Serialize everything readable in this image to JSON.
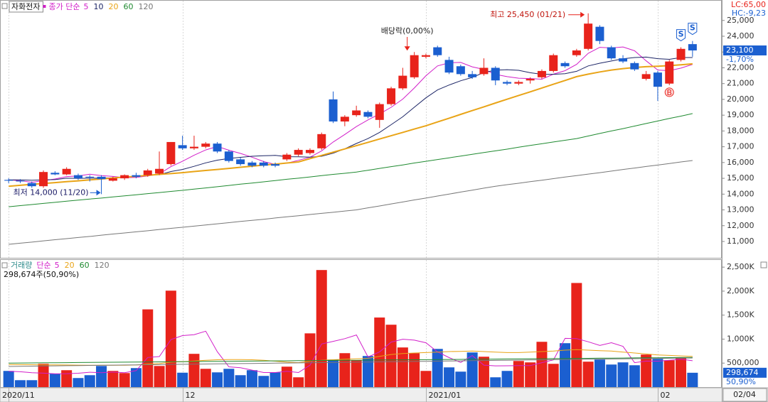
{
  "chart_data": [
    {
      "type": "candlestick",
      "title": "자화전자",
      "legend_title": "종가 단순",
      "open": [
        14900,
        14850,
        14700,
        14500,
        15350,
        15250,
        15200,
        15100,
        15100,
        14850,
        15000,
        15200,
        15200,
        15300,
        15900,
        17100,
        16900,
        17000,
        17200,
        16700,
        16200,
        16000,
        16000,
        15900,
        16200,
        16500,
        16600,
        16900,
        20000,
        18600,
        19000,
        19200,
        18700,
        19700,
        20700,
        21400,
        22700,
        23300,
        22500,
        22100,
        21600,
        21600,
        22000,
        21100,
        21000,
        21200,
        21400,
        21800,
        22300,
        22800,
        23200,
        24600,
        23300,
        22600,
        22300,
        21300,
        21700,
        21000,
        22500,
        23500
      ],
      "high": [
        15000,
        14950,
        14800,
        15500,
        15450,
        15700,
        15300,
        15200,
        15200,
        15100,
        15250,
        15350,
        15600,
        16700,
        17300,
        17700,
        17700,
        17300,
        17300,
        16800,
        16300,
        16100,
        16100,
        16000,
        16600,
        16900,
        16900,
        17900,
        20500,
        19000,
        19600,
        19300,
        19800,
        20800,
        22000,
        23000,
        22900,
        23400,
        22700,
        22200,
        21800,
        22600,
        22100,
        21200,
        21200,
        21400,
        21900,
        22900,
        22400,
        23200,
        25450,
        24700,
        23400,
        22800,
        22400,
        21800,
        21800,
        22500,
        23300,
        23700
      ],
      "low": [
        14700,
        14700,
        14400,
        14400,
        15200,
        15200,
        14900,
        14800,
        14000,
        14800,
        14900,
        15000,
        15100,
        15200,
        15800,
        16800,
        16800,
        16900,
        16600,
        16000,
        15800,
        15700,
        15700,
        15700,
        16100,
        16400,
        16500,
        16800,
        18500,
        18300,
        18900,
        18800,
        18200,
        19600,
        20600,
        21300,
        22600,
        22700,
        21600,
        21500,
        21300,
        21500,
        20900,
        20900,
        20900,
        21000,
        21300,
        21700,
        22000,
        22700,
        23100,
        23500,
        22500,
        22300,
        21800,
        21200,
        19900,
        20900,
        22400,
        22700
      ],
      "close": [
        14850,
        14800,
        14500,
        15400,
        15250,
        15600,
        15000,
        15050,
        14950,
        15000,
        15200,
        15100,
        15500,
        15600,
        17300,
        16900,
        17000,
        17200,
        16700,
        16100,
        15900,
        15800,
        15800,
        15800,
        16500,
        16800,
        16800,
        17800,
        18600,
        18900,
        19300,
        18900,
        19700,
        20700,
        21500,
        22800,
        22800,
        22800,
        21700,
        21600,
        21400,
        22000,
        21200,
        21000,
        21100,
        21300,
        21800,
        22800,
        22100,
        23100,
        24800,
        23700,
        22600,
        22400,
        21900,
        21600,
        20800,
        22400,
        23200,
        23100
      ],
      "up_color": "#e8231b",
      "down_color": "#1b5fd0",
      "series": [
        {
          "name": "5",
          "color": "#d21fc9",
          "values": [
            14900,
            14850,
            14750,
            14850,
            14960,
            15110,
            15150,
            15260,
            15170,
            15120,
            15040,
            15060,
            15150,
            15280,
            15740,
            16080,
            16460,
            16800,
            17020,
            16780,
            16580,
            16340,
            16060,
            15880,
            15960,
            16140,
            16340,
            16740,
            17300,
            17780,
            18280,
            18700,
            19080,
            19500,
            20020,
            20720,
            21500,
            22120,
            22320,
            22340,
            22060,
            21900,
            21580,
            21440,
            21340,
            21320,
            21280,
            21600,
            21820,
            22220,
            22920,
            23300,
            23260,
            23320,
            23080,
            22440,
            21860,
            21820,
            21980,
            22220
          ]
        },
        {
          "name": "10",
          "color": "#1c2566",
          "values": [
            14900,
            14900,
            14880,
            14900,
            14920,
            15010,
            15000,
            15010,
            15010,
            15040,
            15080,
            15110,
            15210,
            15230,
            15430,
            15560,
            15760,
            15980,
            16150,
            16260,
            16330,
            16400,
            16430,
            16450,
            16370,
            16360,
            16340,
            16400,
            16590,
            16870,
            17210,
            17520,
            17910,
            18400,
            18900,
            19500,
            20100,
            20600,
            20910,
            21180,
            21390,
            21700,
            21850,
            21880,
            21840,
            21690,
            21590,
            21590,
            21630,
            21780,
            22120,
            22290,
            22430,
            22570,
            22650,
            22680,
            22580,
            22540,
            22650,
            22650
          ]
        },
        {
          "name": "20",
          "color": "#e9a417",
          "values": [
            14500,
            14560,
            14620,
            14670,
            14730,
            14790,
            14840,
            14900,
            14960,
            15020,
            15080,
            15130,
            15190,
            15250,
            15300,
            15360,
            15430,
            15500,
            15560,
            15630,
            15700,
            15770,
            15840,
            15900,
            15970,
            16040,
            16250,
            16450,
            16660,
            16860,
            17070,
            17280,
            17490,
            17700,
            17910,
            18120,
            18330,
            18570,
            18810,
            19050,
            19290,
            19530,
            19770,
            20010,
            20250,
            20480,
            20720,
            20960,
            21200,
            21440,
            21600,
            21740,
            21860,
            21950,
            22020,
            22070,
            22100,
            22140,
            22190,
            22250
          ]
        },
        {
          "name": "60",
          "color": "#1f8a30",
          "values": [
            13200,
            13270,
            13340,
            13410,
            13480,
            13550,
            13620,
            13690,
            13750,
            13820,
            13890,
            13960,
            14030,
            14100,
            14170,
            14240,
            14320,
            14390,
            14470,
            14550,
            14630,
            14700,
            14780,
            14860,
            14940,
            15010,
            15090,
            15170,
            15250,
            15320,
            15400,
            15510,
            15630,
            15740,
            15850,
            15970,
            16080,
            16190,
            16300,
            16410,
            16520,
            16630,
            16740,
            16850,
            16970,
            17080,
            17190,
            17300,
            17410,
            17520,
            17680,
            17840,
            18000,
            18150,
            18310,
            18470,
            18630,
            18790,
            18940,
            19100
          ]
        },
        {
          "name": "120",
          "color": "#777777",
          "values": [
            10820,
            10890,
            10960,
            11040,
            11110,
            11180,
            11250,
            11320,
            11400,
            11470,
            11540,
            11610,
            11680,
            11760,
            11830,
            11900,
            11970,
            12050,
            12120,
            12190,
            12270,
            12340,
            12410,
            12490,
            12560,
            12630,
            12710,
            12780,
            12850,
            12930,
            13000,
            13130,
            13250,
            13380,
            13500,
            13630,
            13750,
            13880,
            14000,
            14130,
            14250,
            14380,
            14500,
            14600,
            14690,
            14790,
            14880,
            14980,
            15080,
            15170,
            15270,
            15360,
            15460,
            15560,
            15650,
            15750,
            15840,
            15940,
            16040,
            16130
          ]
        }
      ],
      "ylim": [
        10010,
        26205
      ],
      "yticks": [
        {
          "value": 11000,
          "label": "11,000"
        },
        {
          "value": 12000,
          "label": "12,000"
        },
        {
          "value": 13000,
          "label": "13,000"
        },
        {
          "value": 14000,
          "label": "14,000"
        },
        {
          "value": 15000,
          "label": "15,000"
        },
        {
          "value": 16000,
          "label": "16,000"
        },
        {
          "value": 17000,
          "label": "17,000"
        },
        {
          "value": 18000,
          "label": "18,000"
        },
        {
          "value": 19000,
          "label": "19,000"
        },
        {
          "value": 20000,
          "label": "20,000"
        },
        {
          "value": 21000,
          "label": "21,000"
        },
        {
          "value": 22000,
          "label": "22,000"
        },
        {
          "value": 23000,
          "label": "23,000"
        },
        {
          "value": 24000,
          "label": "24,000"
        },
        {
          "value": 25000,
          "label": "25,000"
        }
      ],
      "dividend": {
        "text": "배당락(0,00%)",
        "index": 35
      },
      "max_label": {
        "text": "최고 25,450 (01/21)",
        "index": 50
      },
      "min_label": {
        "text": "최저 14,000 (11/20)",
        "index": 8
      },
      "signals": [
        {
          "label": "B",
          "index": 57
        },
        {
          "label": "S",
          "index": 58
        },
        {
          "label": "S",
          "index": 59
        }
      ],
      "last_price": {
        "value": 23100,
        "label": "23,100"
      },
      "change": {
        "value": -1.7,
        "label": "-1,70%"
      },
      "lc": "LC:65,00",
      "hc": "HC:-9,23"
    },
    {
      "type": "bar",
      "title": "거래량",
      "legend_title": "단순",
      "categories": [
        "2020/11",
        null,
        null,
        null,
        null,
        null,
        null,
        null,
        null,
        null,
        null,
        null,
        null,
        null,
        null,
        "12",
        null,
        null,
        null,
        null,
        null,
        null,
        null,
        null,
        null,
        null,
        null,
        null,
        null,
        null,
        null,
        null,
        null,
        null,
        null,
        null,
        "2021/01",
        null,
        null,
        null,
        null,
        null,
        null,
        null,
        null,
        null,
        null,
        null,
        null,
        null,
        null,
        null,
        null,
        null,
        null,
        null,
        "02",
        null,
        null,
        null
      ],
      "values": [
        337000,
        144000,
        144000,
        485000,
        277000,
        352000,
        189000,
        248000,
        440000,
        337000,
        292000,
        396000,
        1620000,
        440000,
        2010000,
        300000,
        693000,
        381000,
        307000,
        381000,
        248000,
        352000,
        233000,
        307000,
        426000,
        204000,
        1120000,
        2440000,
        574000,
        707000,
        559000,
        648000,
        1450000,
        1300000,
        826000,
        707000,
        337000,
        796000,
        411000,
        322000,
        722000,
        633000,
        204000,
        337000,
        544000,
        515000,
        944000,
        485000,
        915000,
        2170000,
        530000,
        574000,
        470000,
        515000,
        455000,
        678000,
        589000,
        559000,
        620000,
        298674
      ],
      "series": [
        {
          "name": "5",
          "color": "#d21fc9",
          "values": [
            330000,
            320000,
            300000,
            290000,
            277000,
            280000,
            289000,
            310000,
            301000,
            313000,
            301000,
            343000,
            617000,
            637000,
            991000,
            1073000,
            1093000,
            1165000,
            738000,
            422000,
            402000,
            354000,
            304000,
            304000,
            329000,
            304000,
            458000,
            899000,
            953000,
            1009000,
            1086000,
            628000,
            735000,
            939000,
            998000,
            978000,
            924000,
            733000,
            615000,
            514000,
            658000,
            458000,
            442000,
            444000,
            447000,
            447000,
            509000,
            567000,
            1016000,
            1009000,
            945000,
            869000,
            926000,
            848000,
            509000,
            542000,
            541000,
            559000,
            580000,
            549000
          ]
        },
        {
          "name": "20",
          "color": "#e9a417",
          "values": [
            470000,
            468000,
            466000,
            464000,
            462000,
            460000,
            458000,
            456000,
            455000,
            455000,
            455000,
            460000,
            480000,
            490000,
            520000,
            530000,
            545000,
            560000,
            570000,
            575000,
            575000,
            570000,
            560000,
            540000,
            520000,
            510000,
            540000,
            560000,
            570000,
            580000,
            590000,
            600000,
            640000,
            680000,
            700000,
            710000,
            720000,
            730000,
            740000,
            745000,
            750000,
            740000,
            730000,
            720000,
            720000,
            730000,
            740000,
            750000,
            770000,
            780000,
            770000,
            760000,
            750000,
            730000,
            710000,
            690000,
            670000,
            660000,
            650000,
            640000
          ]
        },
        {
          "name": "60",
          "color": "#1f8a30",
          "values": [
            500000,
            502000,
            504000,
            506000,
            508000,
            510000,
            512000,
            514000,
            516000,
            518000,
            520000,
            522000,
            524000,
            526000,
            528000,
            530000,
            532000,
            534000,
            536000,
            538000,
            540000,
            542000,
            544000,
            546000,
            548000,
            550000,
            552000,
            554000,
            556000,
            558000,
            560000,
            562000,
            564000,
            566000,
            568000,
            570000,
            572000,
            574000,
            576000,
            578000,
            580000,
            582000,
            584000,
            586000,
            588000,
            590000,
            592000,
            594000,
            596000,
            598000,
            600000,
            602000,
            604000,
            606000,
            608000,
            610000,
            612000,
            614000,
            616000,
            618000
          ]
        },
        {
          "name": "120",
          "color": "#777777",
          "values": [
            430000,
            433000,
            436000,
            439000,
            442000,
            445000,
            448000,
            451000,
            454000,
            457000,
            460000,
            463000,
            466000,
            469000,
            472000,
            475000,
            478000,
            481000,
            484000,
            487000,
            490000,
            493000,
            496000,
            499000,
            502000,
            505000,
            508000,
            511000,
            514000,
            517000,
            520000,
            523000,
            526000,
            529000,
            532000,
            535000,
            538000,
            541000,
            544000,
            547000,
            550000,
            553000,
            556000,
            559000,
            562000,
            565000,
            568000,
            571000,
            574000,
            577000,
            580000,
            583000,
            586000,
            589000,
            592000,
            595000,
            598000,
            601000,
            604000,
            607000
          ]
        }
      ],
      "ylim": [
        0,
        2650000
      ],
      "yticks": [
        {
          "value": 500000,
          "label": "500,000"
        },
        {
          "value": 1000000,
          "label": "1,000K"
        },
        {
          "value": 1500000,
          "label": "1,500K"
        },
        {
          "value": 2000000,
          "label": "2,000K"
        },
        {
          "value": 2500000,
          "label": "2,500K"
        }
      ],
      "summary": "298,674주(50,90%)",
      "last_label": {
        "value": 298674,
        "label": "298,674"
      },
      "ratio": {
        "value": 50.9,
        "label": "50,90%"
      },
      "date_label": "02/04"
    }
  ]
}
